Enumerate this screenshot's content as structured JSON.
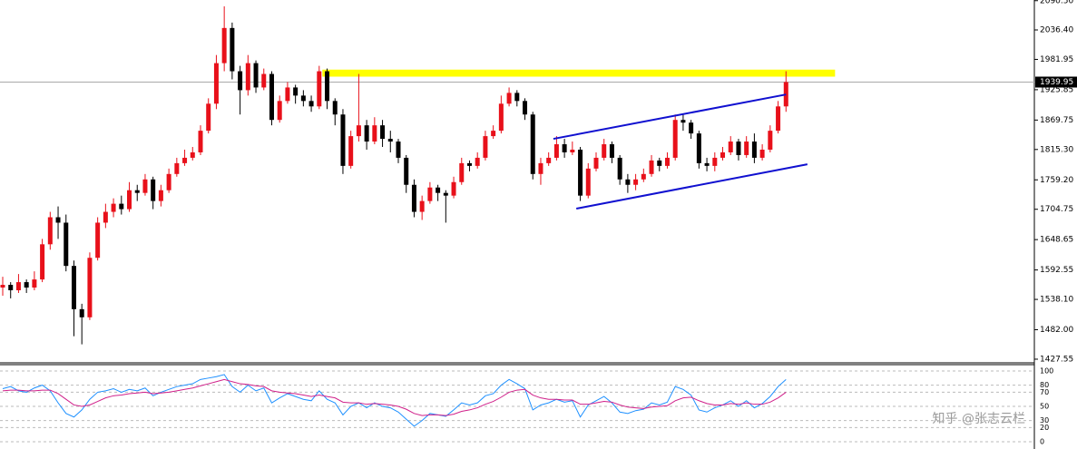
{
  "chart_data": {
    "type": "candlestick",
    "ohlc": [
      [
        1560,
        1580,
        1545,
        1565
      ],
      [
        1565,
        1570,
        1540,
        1555
      ],
      [
        1555,
        1585,
        1550,
        1570
      ],
      [
        1570,
        1575,
        1550,
        1560
      ],
      [
        1560,
        1590,
        1555,
        1575
      ],
      [
        1575,
        1650,
        1570,
        1640
      ],
      [
        1640,
        1700,
        1630,
        1690
      ],
      [
        1690,
        1710,
        1650,
        1680
      ],
      [
        1680,
        1695,
        1590,
        1600
      ],
      [
        1600,
        1610,
        1470,
        1520
      ],
      [
        1520,
        1530,
        1455,
        1505
      ],
      [
        1505,
        1625,
        1500,
        1615
      ],
      [
        1615,
        1690,
        1610,
        1680
      ],
      [
        1680,
        1715,
        1670,
        1700
      ],
      [
        1700,
        1725,
        1690,
        1715
      ],
      [
        1715,
        1730,
        1695,
        1705
      ],
      [
        1705,
        1755,
        1700,
        1740
      ],
      [
        1740,
        1750,
        1720,
        1735
      ],
      [
        1735,
        1770,
        1730,
        1760
      ],
      [
        1760,
        1765,
        1705,
        1720
      ],
      [
        1720,
        1750,
        1710,
        1740
      ],
      [
        1740,
        1780,
        1735,
        1770
      ],
      [
        1770,
        1800,
        1765,
        1790
      ],
      [
        1790,
        1815,
        1785,
        1800
      ],
      [
        1800,
        1820,
        1795,
        1810
      ],
      [
        1810,
        1860,
        1805,
        1850
      ],
      [
        1850,
        1910,
        1845,
        1900
      ],
      [
        1900,
        1990,
        1890,
        1975
      ],
      [
        1975,
        2080,
        1960,
        2040
      ],
      [
        2040,
        2050,
        1945,
        1960
      ],
      [
        1960,
        1970,
        1880,
        1925
      ],
      [
        1925,
        1990,
        1915,
        1975
      ],
      [
        1975,
        1980,
        1920,
        1930
      ],
      [
        1930,
        1965,
        1925,
        1955
      ],
      [
        1955,
        1960,
        1860,
        1870
      ],
      [
        1870,
        1915,
        1865,
        1905
      ],
      [
        1905,
        1940,
        1900,
        1930
      ],
      [
        1930,
        1935,
        1900,
        1915
      ],
      [
        1915,
        1925,
        1895,
        1905
      ],
      [
        1905,
        1915,
        1885,
        1895
      ],
      [
        1895,
        1970,
        1890,
        1960
      ],
      [
        1960,
        1965,
        1890,
        1905
      ],
      [
        1905,
        1910,
        1860,
        1880
      ],
      [
        1880,
        1890,
        1770,
        1785
      ],
      [
        1785,
        1850,
        1780,
        1840
      ],
      [
        1840,
        1955,
        1830,
        1860
      ],
      [
        1860,
        1870,
        1815,
        1830
      ],
      [
        1830,
        1875,
        1825,
        1860
      ],
      [
        1860,
        1870,
        1820,
        1835
      ],
      [
        1835,
        1850,
        1810,
        1830
      ],
      [
        1830,
        1835,
        1790,
        1800
      ],
      [
        1800,
        1805,
        1735,
        1750
      ],
      [
        1750,
        1760,
        1690,
        1700
      ],
      [
        1700,
        1730,
        1685,
        1720
      ],
      [
        1720,
        1755,
        1715,
        1745
      ],
      [
        1745,
        1750,
        1720,
        1735
      ],
      [
        1735,
        1740,
        1680,
        1730
      ],
      [
        1730,
        1765,
        1725,
        1755
      ],
      [
        1755,
        1800,
        1750,
        1790
      ],
      [
        1790,
        1795,
        1775,
        1785
      ],
      [
        1785,
        1810,
        1780,
        1800
      ],
      [
        1800,
        1850,
        1795,
        1840
      ],
      [
        1840,
        1860,
        1835,
        1850
      ],
      [
        1850,
        1915,
        1845,
        1900
      ],
      [
        1900,
        1930,
        1895,
        1920
      ],
      [
        1920,
        1925,
        1895,
        1905
      ],
      [
        1905,
        1910,
        1870,
        1880
      ],
      [
        1880,
        1885,
        1760,
        1770
      ],
      [
        1770,
        1800,
        1750,
        1790
      ],
      [
        1790,
        1810,
        1785,
        1800
      ],
      [
        1800,
        1840,
        1795,
        1825
      ],
      [
        1825,
        1835,
        1800,
        1810
      ],
      [
        1810,
        1830,
        1805,
        1815
      ],
      [
        1815,
        1820,
        1720,
        1730
      ],
      [
        1730,
        1790,
        1725,
        1780
      ],
      [
        1780,
        1810,
        1775,
        1800
      ],
      [
        1800,
        1835,
        1795,
        1825
      ],
      [
        1825,
        1830,
        1790,
        1800
      ],
      [
        1800,
        1805,
        1750,
        1760
      ],
      [
        1760,
        1770,
        1735,
        1750
      ],
      [
        1750,
        1770,
        1740,
        1760
      ],
      [
        1760,
        1780,
        1755,
        1770
      ],
      [
        1770,
        1805,
        1765,
        1795
      ],
      [
        1795,
        1800,
        1775,
        1785
      ],
      [
        1785,
        1810,
        1780,
        1800
      ],
      [
        1800,
        1880,
        1795,
        1870
      ],
      [
        1870,
        1880,
        1850,
        1865
      ],
      [
        1865,
        1870,
        1835,
        1845
      ],
      [
        1845,
        1850,
        1780,
        1790
      ],
      [
        1790,
        1800,
        1775,
        1785
      ],
      [
        1785,
        1810,
        1775,
        1800
      ],
      [
        1800,
        1820,
        1795,
        1810
      ],
      [
        1810,
        1840,
        1805,
        1830
      ],
      [
        1830,
        1835,
        1795,
        1805
      ],
      [
        1805,
        1840,
        1800,
        1830
      ],
      [
        1830,
        1845,
        1790,
        1800
      ],
      [
        1800,
        1825,
        1795,
        1815
      ],
      [
        1815,
        1860,
        1810,
        1850
      ],
      [
        1850,
        1905,
        1845,
        1895
      ],
      [
        1895,
        1960,
        1885,
        1940
      ]
    ],
    "up_color": "#e8101a",
    "down_color": "#000000",
    "ylim": [
      1420.8,
      2091.75
    ],
    "yticks": [
      {
        "value": 2090.5,
        "label": "2090.50"
      },
      {
        "value": 2036.4,
        "label": "2036.40"
      },
      {
        "value": 1981.95,
        "label": "1981.95"
      },
      {
        "value": 1925.85,
        "label": "1925.85"
      },
      {
        "value": 1869.75,
        "label": "1869.75"
      },
      {
        "value": 1815.3,
        "label": "1815.30"
      },
      {
        "value": 1759.2,
        "label": "1759.20"
      },
      {
        "value": 1704.75,
        "label": "1704.75"
      },
      {
        "value": 1648.65,
        "label": "1648.65"
      },
      {
        "value": 1592.55,
        "label": "1592.55"
      },
      {
        "value": 1538.1,
        "label": "1538.10"
      },
      {
        "value": 1482,
        "label": "1482.00"
      },
      {
        "value": 1427.55,
        "label": "1427.55"
      }
    ],
    "last_price": {
      "value": 1939.95,
      "label": "1939.95"
    },
    "zone": {
      "x": [
        40.4,
        105.2
      ],
      "y": [
        1950,
        1963
      ],
      "color": "#ffff00"
    },
    "channel": {
      "color": "#1010d0",
      "lines": [
        {
          "x": [
            69.6,
            99
          ],
          "y": [
            1835,
            1917
          ]
        },
        {
          "x": [
            72.5,
            101.7
          ],
          "y": [
            1706,
            1788
          ]
        }
      ]
    },
    "oscillator": {
      "ylim": [
        -3.8,
        107.7
      ],
      "yticks": [
        100,
        80,
        70,
        50,
        30,
        20,
        0
      ],
      "series": [
        {
          "color": "#1e90ff",
          "values": [
            75,
            78,
            72,
            70,
            76,
            80,
            72,
            55,
            40,
            35,
            45,
            60,
            70,
            72,
            75,
            70,
            74,
            72,
            76,
            65,
            70,
            74,
            78,
            80,
            82,
            88,
            90,
            92,
            95,
            78,
            70,
            80,
            72,
            76,
            55,
            62,
            68,
            64,
            60,
            58,
            72,
            60,
            55,
            38,
            50,
            55,
            48,
            55,
            50,
            48,
            42,
            32,
            22,
            30,
            40,
            38,
            36,
            45,
            55,
            52,
            55,
            65,
            68,
            80,
            88,
            82,
            75,
            45,
            52,
            55,
            60,
            56,
            58,
            35,
            52,
            58,
            64,
            55,
            42,
            40,
            44,
            46,
            55,
            52,
            56,
            78,
            74,
            66,
            45,
            42,
            48,
            52,
            58,
            50,
            58,
            48,
            54,
            64,
            78,
            88
          ]
        },
        {
          "color": "#d0208a",
          "values": [
            72,
            73,
            73,
            72,
            72,
            73,
            73,
            68,
            60,
            52,
            50,
            52,
            57,
            62,
            65,
            66,
            68,
            69,
            70,
            68,
            69,
            70,
            72,
            74,
            76,
            79,
            82,
            85,
            88,
            85,
            82,
            81,
            79,
            78,
            72,
            70,
            69,
            68,
            66,
            64,
            66,
            64,
            62,
            56,
            55,
            55,
            53,
            54,
            53,
            52,
            50,
            46,
            40,
            37,
            38,
            38,
            37,
            39,
            43,
            45,
            48,
            53,
            57,
            63,
            70,
            73,
            74,
            66,
            62,
            60,
            60,
            59,
            59,
            53,
            53,
            55,
            57,
            56,
            52,
            49,
            48,
            47,
            49,
            50,
            51,
            58,
            62,
            63,
            58,
            54,
            52,
            52,
            54,
            53,
            55,
            53,
            53,
            56,
            62,
            70
          ]
        }
      ]
    }
  },
  "watermark": "知乎 @张志云栏"
}
